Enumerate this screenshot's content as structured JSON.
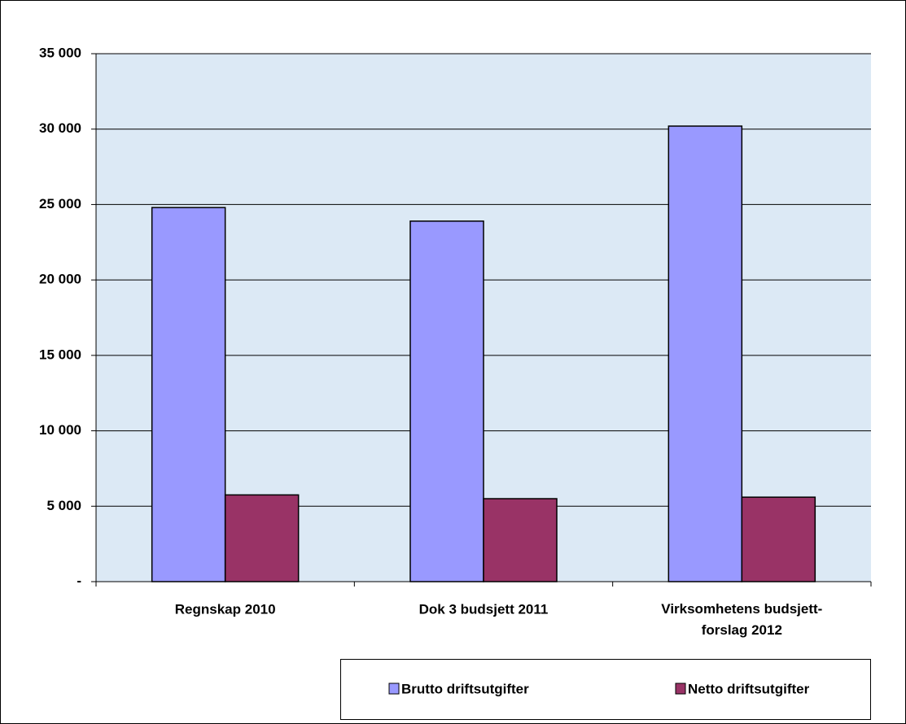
{
  "chart_data": {
    "type": "bar",
    "categories": [
      "Regnskap 2010",
      "Dok 3 budsjett 2011",
      "Virksomhetens budsjett-forslag 2012"
    ],
    "series": [
      {
        "name": "Brutto driftsutgifter",
        "color": "#9999ff",
        "values": [
          24800,
          23900,
          30200
        ]
      },
      {
        "name": "Netto driftsutgifter",
        "color": "#993366",
        "values": [
          5750,
          5500,
          5600
        ]
      }
    ],
    "ylim": [
      0,
      35000
    ],
    "yticks": [
      {
        "value": 0,
        "label": "-"
      },
      {
        "value": 5000,
        "label": "5 000"
      },
      {
        "value": 10000,
        "label": "10 000"
      },
      {
        "value": 15000,
        "label": "15 000"
      },
      {
        "value": 20000,
        "label": "20 000"
      },
      {
        "value": 25000,
        "label": "25 000"
      },
      {
        "value": 30000,
        "label": "30 000"
      },
      {
        "value": 35000,
        "label": "35 000"
      }
    ],
    "grid": true,
    "legend": "bottom-right"
  }
}
